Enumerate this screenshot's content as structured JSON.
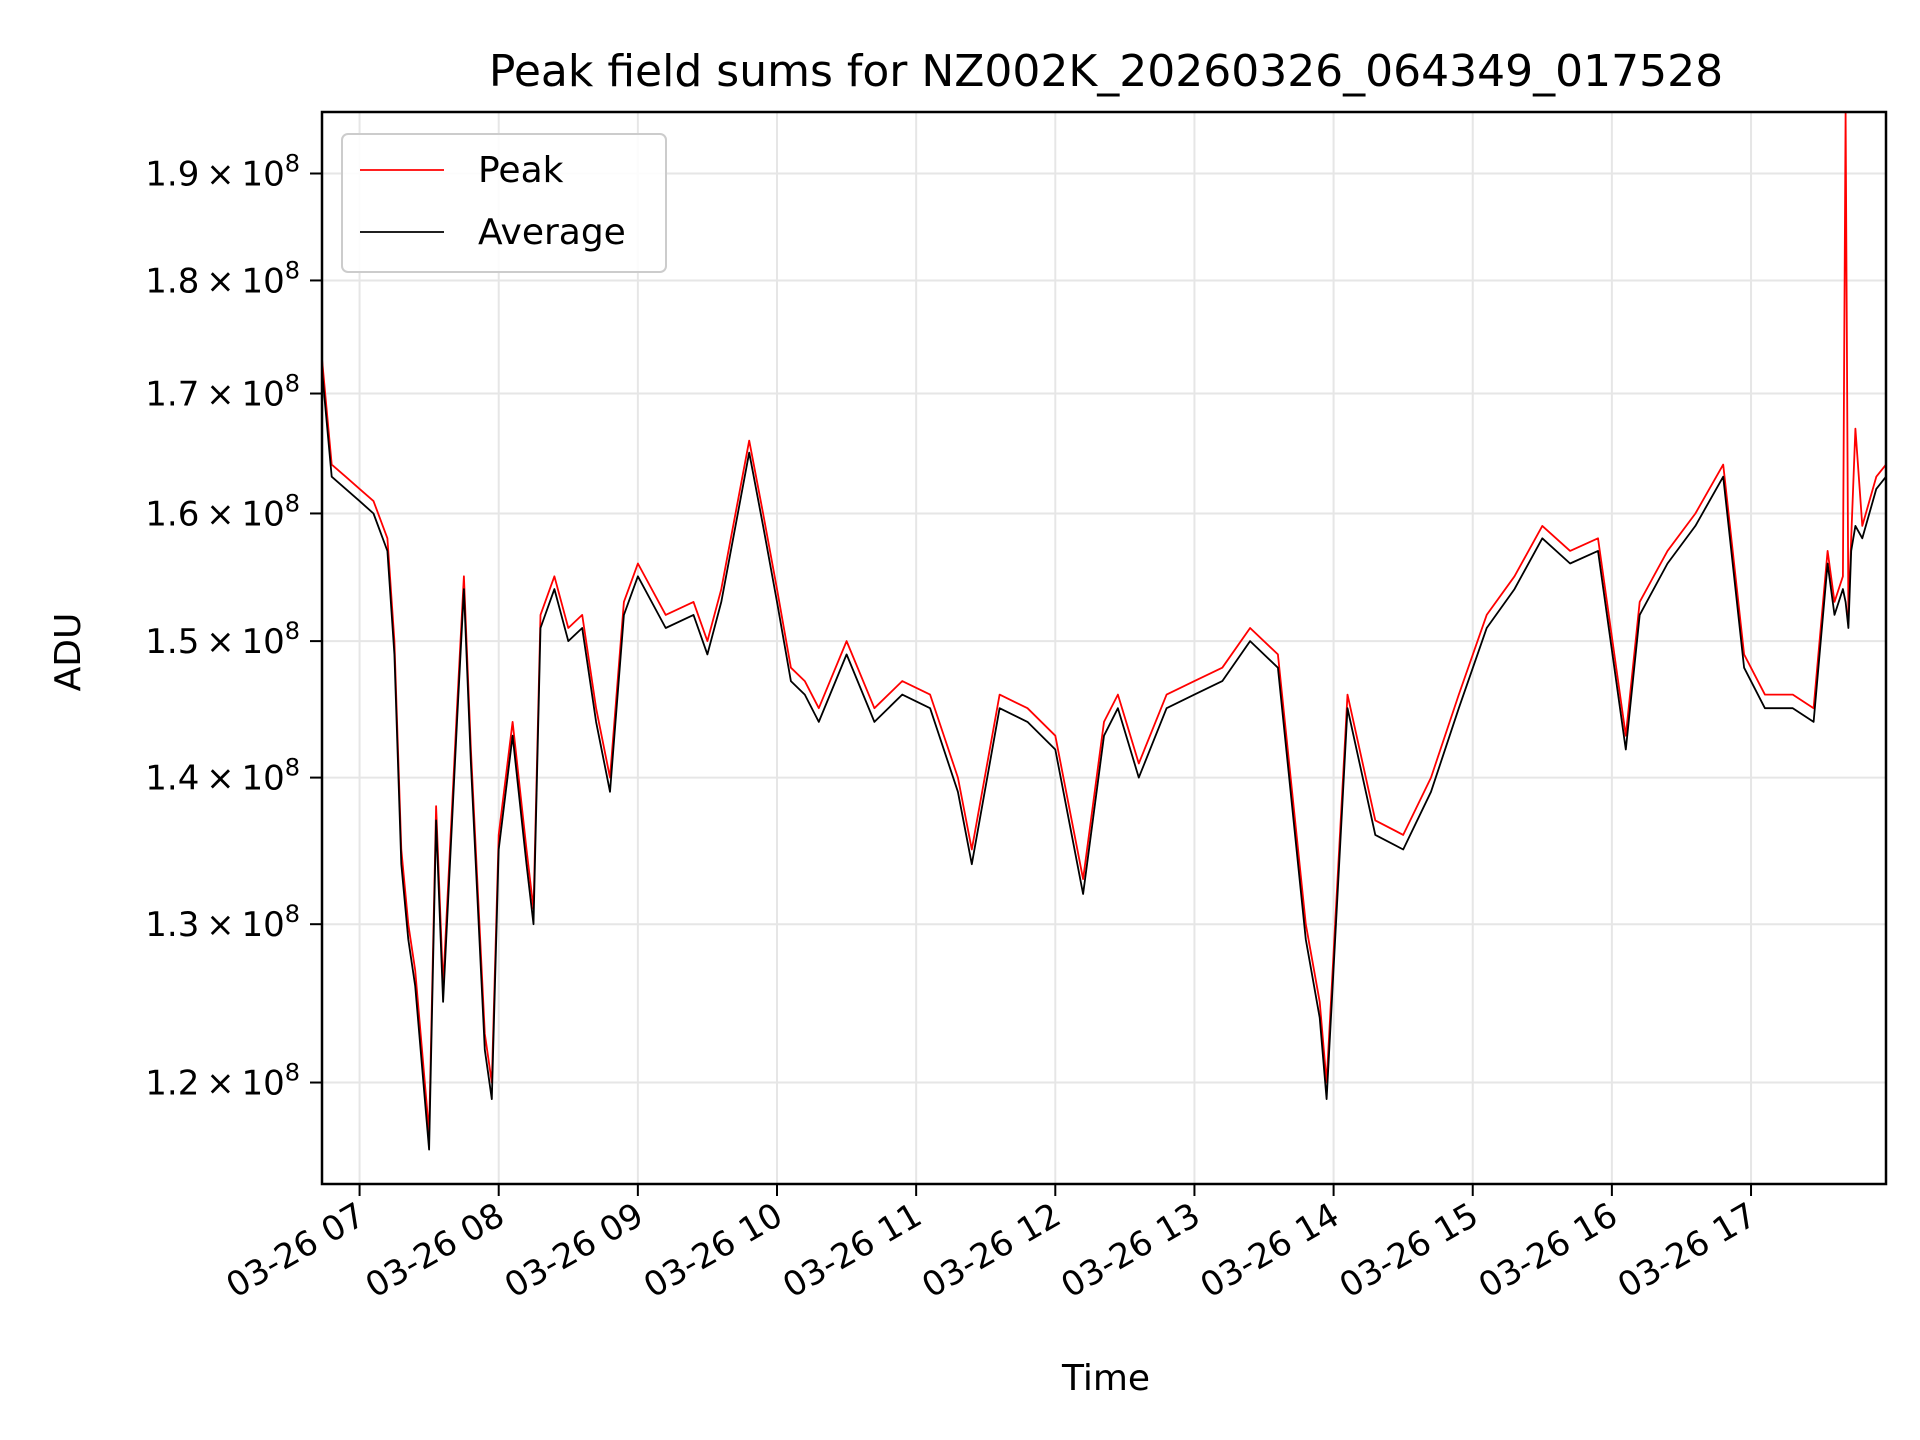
{
  "chart_data": {
    "type": "line",
    "title": "Peak field sums for NZ002K_20260326_064349_017528",
    "xlabel": "Time",
    "ylabel": "ADU",
    "yscale": "log",
    "xlim": [
      6.73,
      17.97
    ],
    "ylim": [
      114000000,
      196000000
    ],
    "grid": true,
    "legend_position": "upper-left",
    "x_tick_values": [
      7,
      8,
      9,
      10,
      11,
      12,
      13,
      14,
      15,
      16,
      17
    ],
    "x_tick_labels": [
      "03-26 07",
      "03-26 08",
      "03-26 09",
      "03-26 10",
      "03-26 11",
      "03-26 12",
      "03-26 13",
      "03-26 14",
      "03-26 15",
      "03-26 16",
      "03-26 17"
    ],
    "y_ticks": [
      {
        "value": 120000000,
        "mantissa": "1.2",
        "base": "10",
        "exponent": "8"
      },
      {
        "value": 130000000,
        "mantissa": "1.3",
        "base": "10",
        "exponent": "8"
      },
      {
        "value": 140000000,
        "mantissa": "1.4",
        "base": "10",
        "exponent": "8"
      },
      {
        "value": 150000000,
        "mantissa": "1.5",
        "base": "10",
        "exponent": "8"
      },
      {
        "value": 160000000,
        "mantissa": "1.6",
        "base": "10",
        "exponent": "8"
      },
      {
        "value": 170000000,
        "mantissa": "1.7",
        "base": "10",
        "exponent": "8"
      },
      {
        "value": 180000000,
        "mantissa": "1.8",
        "base": "10",
        "exponent": "8"
      },
      {
        "value": 190000000,
        "mantissa": "1.9",
        "base": "10",
        "exponent": "8"
      }
    ],
    "series": [
      {
        "name": "Peak",
        "color": "#ff0000",
        "x": [
          6.73,
          6.8,
          6.9,
          7.0,
          7.1,
          7.2,
          7.25,
          7.3,
          7.35,
          7.4,
          7.5,
          7.55,
          7.6,
          7.7,
          7.75,
          7.8,
          7.9,
          7.95,
          8.0,
          8.1,
          8.2,
          8.25,
          8.3,
          8.4,
          8.5,
          8.6,
          8.7,
          8.8,
          8.9,
          9.0,
          9.2,
          9.4,
          9.5,
          9.6,
          9.8,
          9.9,
          10.0,
          10.1,
          10.2,
          10.3,
          10.5,
          10.7,
          10.9,
          11.1,
          11.3,
          11.4,
          11.6,
          11.8,
          12.0,
          12.2,
          12.35,
          12.45,
          12.6,
          12.8,
          13.0,
          13.2,
          13.4,
          13.6,
          13.8,
          13.9,
          13.95,
          14.1,
          14.3,
          14.5,
          14.7,
          14.9,
          15.1,
          15.3,
          15.5,
          15.7,
          15.9,
          16.1,
          16.2,
          16.4,
          16.6,
          16.8,
          16.95,
          17.1,
          17.3,
          17.45,
          17.55,
          17.6,
          17.66,
          17.68,
          17.7,
          17.72,
          17.75,
          17.8,
          17.9,
          17.97
        ],
        "y": [
          173000000,
          164000000,
          163000000,
          162000000,
          161000000,
          158000000,
          150000000,
          135000000,
          130000000,
          127000000,
          117000000,
          138000000,
          126000000,
          145000000,
          155000000,
          142000000,
          123000000,
          120000000,
          136000000,
          144000000,
          135000000,
          131000000,
          152000000,
          155000000,
          151000000,
          152000000,
          145000000,
          140000000,
          153000000,
          156000000,
          152000000,
          153000000,
          150000000,
          154000000,
          166000000,
          160000000,
          154000000,
          148000000,
          147000000,
          145000000,
          150000000,
          145000000,
          147000000,
          146000000,
          140000000,
          135000000,
          146000000,
          145000000,
          143000000,
          133000000,
          144000000,
          146000000,
          141000000,
          146000000,
          147000000,
          148000000,
          151000000,
          149000000,
          130000000,
          125000000,
          120000000,
          146000000,
          137000000,
          136000000,
          140000000,
          146000000,
          152000000,
          155000000,
          159000000,
          157000000,
          158000000,
          143000000,
          153000000,
          157000000,
          160000000,
          164000000,
          149000000,
          146000000,
          146000000,
          145000000,
          157000000,
          153000000,
          155000000,
          196000000,
          152000000,
          158000000,
          167000000,
          159000000,
          163000000,
          164000000
        ]
      },
      {
        "name": "Average",
        "color": "#000000",
        "x": [
          6.73,
          6.8,
          6.9,
          7.0,
          7.1,
          7.2,
          7.25,
          7.3,
          7.35,
          7.4,
          7.5,
          7.55,
          7.6,
          7.7,
          7.75,
          7.8,
          7.9,
          7.95,
          8.0,
          8.1,
          8.2,
          8.25,
          8.3,
          8.4,
          8.5,
          8.6,
          8.7,
          8.8,
          8.9,
          9.0,
          9.2,
          9.4,
          9.5,
          9.6,
          9.8,
          9.9,
          10.0,
          10.1,
          10.2,
          10.3,
          10.5,
          10.7,
          10.9,
          11.1,
          11.3,
          11.4,
          11.6,
          11.8,
          12.0,
          12.2,
          12.35,
          12.45,
          12.6,
          12.8,
          13.0,
          13.2,
          13.4,
          13.6,
          13.8,
          13.9,
          13.95,
          14.1,
          14.3,
          14.5,
          14.7,
          14.9,
          15.1,
          15.3,
          15.5,
          15.7,
          15.9,
          16.1,
          16.2,
          16.4,
          16.6,
          16.8,
          16.95,
          17.1,
          17.3,
          17.45,
          17.55,
          17.6,
          17.66,
          17.68,
          17.7,
          17.72,
          17.75,
          17.8,
          17.9,
          17.97
        ],
        "y": [
          172000000,
          163000000,
          162000000,
          161000000,
          160000000,
          157000000,
          149000000,
          134000000,
          129000000,
          126000000,
          116000000,
          137000000,
          125000000,
          144000000,
          154000000,
          141000000,
          122000000,
          119000000,
          135000000,
          143000000,
          134000000,
          130000000,
          151000000,
          154000000,
          150000000,
          151000000,
          144000000,
          139000000,
          152000000,
          155000000,
          151000000,
          152000000,
          149000000,
          153000000,
          165000000,
          159000000,
          153000000,
          147000000,
          146000000,
          144000000,
          149000000,
          144000000,
          146000000,
          145000000,
          139000000,
          134000000,
          145000000,
          144000000,
          142000000,
          132000000,
          143000000,
          145000000,
          140000000,
          145000000,
          146000000,
          147000000,
          150000000,
          148000000,
          129000000,
          124000000,
          119000000,
          145000000,
          136000000,
          135000000,
          139000000,
          145000000,
          151000000,
          154000000,
          158000000,
          156000000,
          157000000,
          142000000,
          152000000,
          156000000,
          159000000,
          163000000,
          148000000,
          145000000,
          145000000,
          144000000,
          156000000,
          152000000,
          154000000,
          153000000,
          151000000,
          157000000,
          159000000,
          158000000,
          162000000,
          163000000
        ]
      }
    ]
  }
}
